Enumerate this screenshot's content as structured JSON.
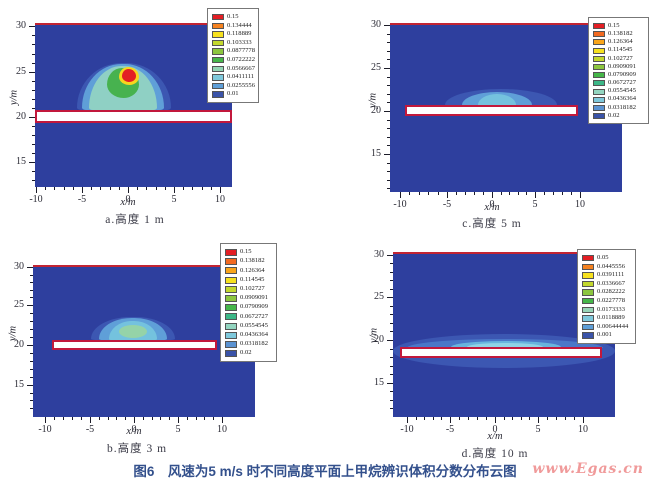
{
  "caption": {
    "text": "图6　风速为5 m/s 时不同高度平面上甲烷辨识体积分数分布云图"
  },
  "watermark": {
    "text": "www.Egas.cn"
  },
  "colors": {
    "plot_background": "#2e3f9e",
    "plume_outer_blue": "#3c57b2",
    "plume_light_blue": "#5f9fd8",
    "plume_cyan": "#74c2de",
    "plume_teal": "#8fd0c4",
    "plume_pale_green": "#95d3a8",
    "plume_green": "#47b24f",
    "plume_yellow": "#f7d51e",
    "plume_red": "#e31e24",
    "obstacle_fill": "#ffffff",
    "obstacle_edge": "#c2183c",
    "top_edge_red": "#c22433",
    "caption_color": "#33508c",
    "watermark_color": "#f09a9a"
  },
  "subplots": [
    {
      "id": "a",
      "label": "a.高度 1 m",
      "xlabel": "x/m",
      "ylabel": "y/m",
      "x_ticks": [
        "-10",
        "-5",
        "0",
        "5",
        "10"
      ],
      "y_ticks": [
        "30",
        "25",
        "20",
        "15"
      ],
      "legend": {
        "values": [
          "0.15",
          "0.134444",
          "0.118889",
          "0.103333",
          "0.0877778",
          "0.0722222",
          "0.0566667",
          "0.0411111",
          "0.0255556",
          "0.01"
        ],
        "colors": [
          "#e31e24",
          "#f58220",
          "#f7e11e",
          "#c3d82d",
          "#8cc63f",
          "#45b649",
          "#93d5b4",
          "#7fc9dc",
          "#5f9fd8",
          "#3a53a8"
        ]
      }
    },
    {
      "id": "c",
      "label": "c.高度 5 m",
      "xlabel": "x/m",
      "ylabel": "y/m",
      "x_ticks": [
        "-10",
        "-5",
        "0",
        "5",
        "10"
      ],
      "y_ticks": [
        "30",
        "25",
        "20",
        "15"
      ],
      "legend": {
        "values": [
          "0.15",
          "0.138182",
          "0.126364",
          "0.114545",
          "0.102727",
          "0.0909091",
          "0.0790909",
          "0.0672727",
          "0.0554545",
          "0.0436364",
          "0.0318182",
          "0.02"
        ],
        "colors": [
          "#e31e24",
          "#f26a21",
          "#f9a51a",
          "#f7e11e",
          "#c3d82d",
          "#8cc63f",
          "#45b649",
          "#3cb787",
          "#93d5c0",
          "#7fc9dc",
          "#5b93d2",
          "#3a53a8"
        ]
      }
    },
    {
      "id": "b",
      "label": "b.高度 3 m",
      "xlabel": "x/m",
      "ylabel": "y/m",
      "x_ticks": [
        "-10",
        "-5",
        "0",
        "5",
        "10"
      ],
      "y_ticks": [
        "30",
        "25",
        "20",
        "15"
      ],
      "legend": {
        "values": [
          "0.15",
          "0.138182",
          "0.126364",
          "0.114545",
          "0.102727",
          "0.0909091",
          "0.0790909",
          "0.0672727",
          "0.0554545",
          "0.0436364",
          "0.0318182",
          "0.02"
        ],
        "colors": [
          "#e31e24",
          "#f26a21",
          "#f9a51a",
          "#f7e11e",
          "#c3d82d",
          "#8cc63f",
          "#45b649",
          "#3cb787",
          "#93d5c0",
          "#7fc9dc",
          "#5b93d2",
          "#3a53a8"
        ]
      }
    },
    {
      "id": "d",
      "label": "d.高度 10 m",
      "xlabel": "x/m",
      "ylabel": "y/m",
      "x_ticks": [
        "-10",
        "-5",
        "0",
        "5",
        "10"
      ],
      "y_ticks": [
        "30",
        "25",
        "20",
        "15"
      ],
      "legend": {
        "values": [
          "0.05",
          "0.0445556",
          "0.0391111",
          "0.0336667",
          "0.0282222",
          "0.0227778",
          "0.0173333",
          "0.0118889",
          "0.00644444",
          "0.001"
        ],
        "colors": [
          "#e31e24",
          "#f58220",
          "#f7e11e",
          "#c3d82d",
          "#8cc63f",
          "#45b649",
          "#98d5b8",
          "#7fc9dc",
          "#5f9fd8",
          "#3a53a8"
        ]
      }
    }
  ],
  "chart_data": [
    {
      "type": "contour",
      "subplot": "a",
      "title": "a.高度 1 m",
      "xlabel": "x/m",
      "ylabel": "y/m",
      "xlim": [
        -10.5,
        11.5
      ],
      "ylim": [
        12,
        30
      ],
      "x_ticks": [
        -10,
        -5,
        0,
        5,
        10
      ],
      "y_ticks": [
        30,
        25,
        20,
        15
      ],
      "grid": false,
      "legend_position": "upper right",
      "levels": [
        0.01,
        0.0255556,
        0.0411111,
        0.0566667,
        0.0722222,
        0.0877778,
        0.103333,
        0.118889,
        0.134444,
        0.15
      ],
      "level_colors": [
        "#3a53a8",
        "#5f9fd8",
        "#7fc9dc",
        "#93d5b4",
        "#45b649",
        "#8cc63f",
        "#c3d82d",
        "#f7e11e",
        "#f58220",
        "#e31e24"
      ],
      "obstacle_bar": {
        "x_range": [
          -10,
          11.5
        ],
        "y_center": 20,
        "thickness": 1.2,
        "fill": "#ffffff",
        "edge": "#c2183c"
      },
      "plume": {
        "shape": "bell",
        "center_x": 0,
        "y_base": 20.6,
        "y_top": 25.6,
        "half_width_base": 4.5,
        "peak_value": 0.15,
        "peak_location": [
          0,
          24.5
        ]
      }
    },
    {
      "type": "contour",
      "subplot": "c",
      "title": "c.高度 5 m",
      "xlabel": "x/m",
      "ylabel": "y/m",
      "xlim": [
        -11,
        14.5
      ],
      "ylim": [
        12,
        30
      ],
      "x_ticks": [
        -10,
        -5,
        0,
        5,
        10
      ],
      "y_ticks": [
        30,
        25,
        20,
        15
      ],
      "grid": false,
      "legend_position": "upper right",
      "levels": [
        0.02,
        0.0318182,
        0.0436364,
        0.0554545,
        0.0672727,
        0.0790909,
        0.0909091,
        0.102727,
        0.114545,
        0.126364,
        0.138182,
        0.15
      ],
      "level_colors": [
        "#3a53a8",
        "#5b93d2",
        "#7fc9dc",
        "#93d5c0",
        "#3cb787",
        "#45b649",
        "#8cc63f",
        "#c3d82d",
        "#f7e11e",
        "#f9a51a",
        "#f26a21",
        "#e31e24"
      ],
      "obstacle_bar": {
        "x_range": [
          -10,
          10
        ],
        "y_center": 20,
        "thickness": 1.2,
        "fill": "#ffffff",
        "edge": "#c2183c"
      },
      "plume": {
        "shape": "dome",
        "center_x": 0.5,
        "y_base": 20.5,
        "y_top": 21.6,
        "half_width_base": 3.5,
        "peak_value": 0.0554545,
        "peak_location": [
          0.5,
          20.8
        ]
      }
    },
    {
      "type": "contour",
      "subplot": "b",
      "title": "b.高度 3 m",
      "xlabel": "x/m",
      "ylabel": "y/m",
      "xlim": [
        -11,
        14
      ],
      "ylim": [
        12.5,
        30
      ],
      "x_ticks": [
        -10,
        -5,
        0,
        5,
        10
      ],
      "y_ticks": [
        30,
        25,
        20,
        15
      ],
      "grid": false,
      "legend_position": "upper right",
      "levels": [
        0.02,
        0.0318182,
        0.0436364,
        0.0554545,
        0.0672727,
        0.0790909,
        0.0909091,
        0.102727,
        0.114545,
        0.126364,
        0.138182,
        0.15
      ],
      "level_colors": [
        "#3a53a8",
        "#5b93d2",
        "#7fc9dc",
        "#93d5c0",
        "#3cb787",
        "#45b649",
        "#8cc63f",
        "#c3d82d",
        "#f7e11e",
        "#f9a51a",
        "#f26a21",
        "#e31e24"
      ],
      "obstacle_bar": {
        "x_range": [
          -8.5,
          10
        ],
        "y_center": 20,
        "thickness": 1.2,
        "fill": "#ffffff",
        "edge": "#c2183c"
      },
      "plume": {
        "shape": "bell",
        "center_x": 0,
        "y_base": 20,
        "y_top": 23.3,
        "half_width_base": 4.2,
        "peak_value": 0.0909091,
        "peak_location": [
          0,
          21.8
        ]
      }
    },
    {
      "type": "contour",
      "subplot": "d",
      "title": "d.高度 10 m",
      "xlabel": "x/m",
      "ylabel": "y/m",
      "xlim": [
        -11,
        13.5
      ],
      "ylim": [
        12,
        30.5
      ],
      "x_ticks": [
        -10,
        -5,
        0,
        5,
        10
      ],
      "y_ticks": [
        30,
        25,
        20,
        15
      ],
      "grid": false,
      "legend_position": "upper right",
      "levels": [
        0.001,
        0.00644444,
        0.0118889,
        0.0173333,
        0.0227778,
        0.0282222,
        0.0336667,
        0.0391111,
        0.0445556,
        0.05
      ],
      "level_colors": [
        "#3a53a8",
        "#5f9fd8",
        "#7fc9dc",
        "#98d5b8",
        "#45b649",
        "#8cc63f",
        "#c3d82d",
        "#f7e11e",
        "#f58220",
        "#e31e24"
      ],
      "obstacle_bar": {
        "x_range": [
          -10,
          10
        ],
        "y_center": 20,
        "thickness": 1.2,
        "fill": "#ffffff",
        "edge": "#c2183c"
      },
      "plume": {
        "shape": "layer",
        "center_x": 0,
        "y_base": 19,
        "y_top": 21.8,
        "half_width_base": 10,
        "peak_value": 0.0118889,
        "peak_location": [
          0,
          20.8
        ]
      }
    }
  ]
}
